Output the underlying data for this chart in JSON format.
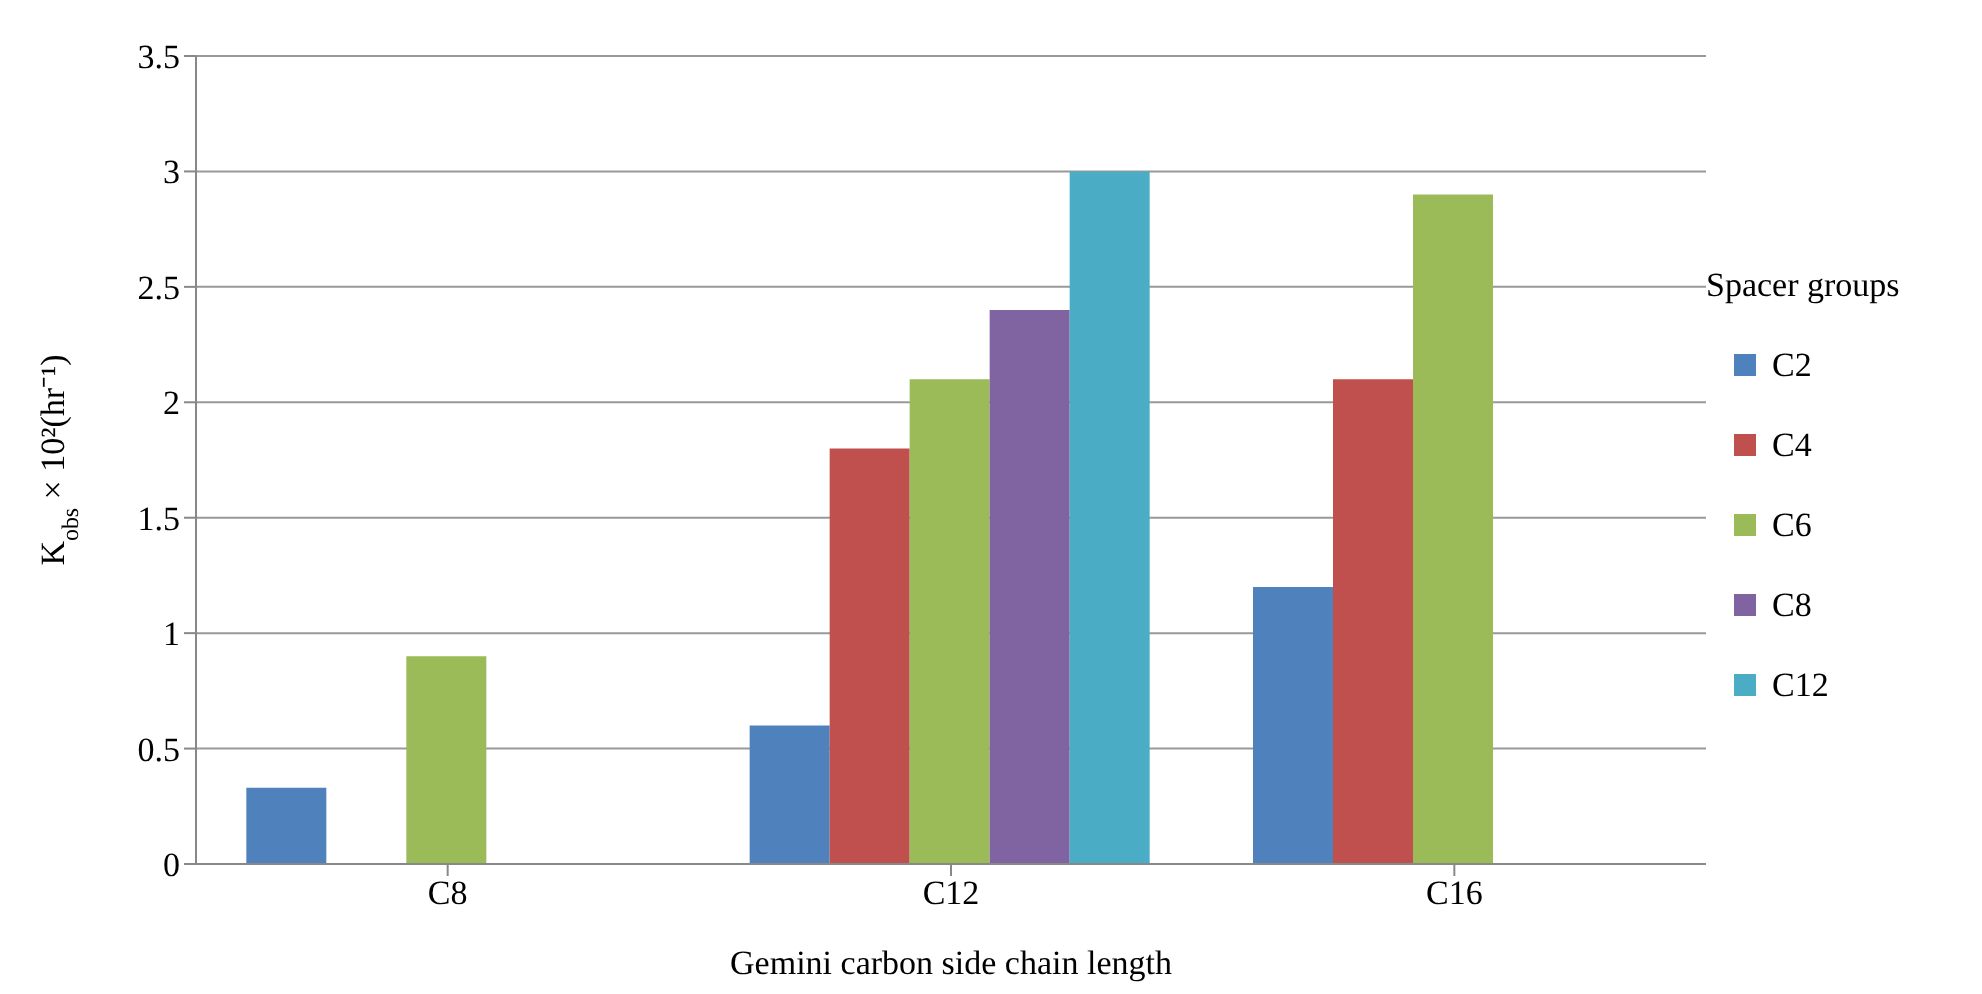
{
  "chart_data": {
    "type": "bar",
    "xlabel": "Gemini carbon side chain length",
    "ylabel": "K$_{obs}$ × 10²(hr⁻¹)",
    "legend_title": "Spacer groups",
    "categories": [
      "C8",
      "C12",
      "C16"
    ],
    "series": [
      {
        "name": "C2",
        "color": "#4f81bd",
        "values": [
          0.33,
          0.6,
          1.2
        ]
      },
      {
        "name": "C4",
        "color": "#c0504d",
        "values": [
          null,
          1.8,
          2.1
        ]
      },
      {
        "name": "C6",
        "color": "#9bbb59",
        "values": [
          0.9,
          2.1,
          2.9
        ]
      },
      {
        "name": "C8",
        "color": "#8064a2",
        "values": [
          null,
          2.4,
          null
        ]
      },
      {
        "name": "C12",
        "color": "#4bacc6",
        "values": [
          null,
          3.0,
          null
        ]
      }
    ],
    "ylim": [
      0,
      3.5
    ],
    "yticks": [
      0,
      0.5,
      1,
      1.5,
      2,
      2.5,
      3,
      3.5
    ],
    "grid": "y",
    "legend": "right"
  }
}
